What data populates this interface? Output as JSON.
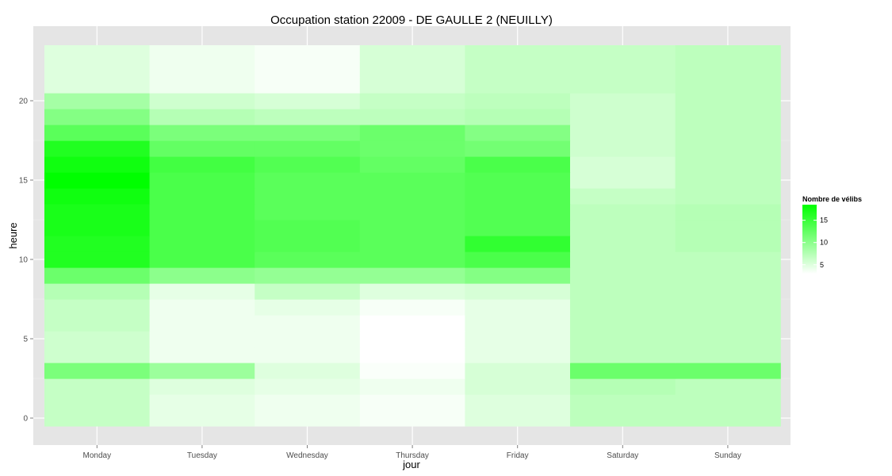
{
  "chart_data": {
    "type": "heatmap",
    "title": "Occupation station 22009 - DE GAULLE 2 (NEUILLY)",
    "xlabel": "jour",
    "ylabel": "heure",
    "categories": [
      "Monday",
      "Tuesday",
      "Wednesday",
      "Thursday",
      "Friday",
      "Saturday",
      "Sunday"
    ],
    "hours": [
      0,
      1,
      2,
      3,
      4,
      5,
      6,
      7,
      8,
      9,
      10,
      11,
      12,
      13,
      14,
      15,
      16,
      17,
      18,
      19,
      20,
      21,
      22,
      23
    ],
    "ylim": [
      -0.5,
      23.5
    ],
    "yticks": [
      0,
      5,
      10,
      15,
      20
    ],
    "grid": true,
    "legend": {
      "title": "Nombre de vélibs",
      "position": "right",
      "ticks": [
        5,
        10,
        15
      ],
      "range": [
        3,
        18.5
      ],
      "low_color": "#ffffff",
      "high_color": "#00ff00"
    },
    "values": [
      [
        6.5,
        4.5,
        4.0,
        3.5,
        5.0,
        7.0,
        7.0
      ],
      [
        6.5,
        4.5,
        4.0,
        3.5,
        5.0,
        7.0,
        7.0
      ],
      [
        6.5,
        5.0,
        4.5,
        4.0,
        5.5,
        7.5,
        7.0
      ],
      [
        11.0,
        9.0,
        5.0,
        3.3,
        5.5,
        12.0,
        12.0
      ],
      [
        6.0,
        4.0,
        4.0,
        3.0,
        4.5,
        7.0,
        7.0
      ],
      [
        6.0,
        4.0,
        4.0,
        3.0,
        4.5,
        7.0,
        7.0
      ],
      [
        6.5,
        4.0,
        4.0,
        3.0,
        4.5,
        7.0,
        7.0
      ],
      [
        6.5,
        4.0,
        4.5,
        3.5,
        4.5,
        7.0,
        7.0
      ],
      [
        7.5,
        4.5,
        6.5,
        5.0,
        5.5,
        7.0,
        7.0
      ],
      [
        12.0,
        10.0,
        9.5,
        9.5,
        10.5,
        7.0,
        7.0
      ],
      [
        16.5,
        14.0,
        13.0,
        13.0,
        14.0,
        7.0,
        7.0
      ],
      [
        16.5,
        14.0,
        13.5,
        13.0,
        15.5,
        7.0,
        7.5
      ],
      [
        17.0,
        14.0,
        13.5,
        13.0,
        13.5,
        7.0,
        7.5
      ],
      [
        17.0,
        14.0,
        13.0,
        13.0,
        13.5,
        7.0,
        7.5
      ],
      [
        17.5,
        14.0,
        13.0,
        13.0,
        13.5,
        6.5,
        7.0
      ],
      [
        18.5,
        14.0,
        13.0,
        13.0,
        13.5,
        5.5,
        7.0
      ],
      [
        17.5,
        14.5,
        13.5,
        12.5,
        14.0,
        5.5,
        7.0
      ],
      [
        16.5,
        12.5,
        12.5,
        12.0,
        11.5,
        6.0,
        7.0
      ],
      [
        13.0,
        11.0,
        11.0,
        12.0,
        10.5,
        6.0,
        7.0
      ],
      [
        10.5,
        7.5,
        7.0,
        7.0,
        7.5,
        6.0,
        7.0
      ],
      [
        8.5,
        6.0,
        5.5,
        6.5,
        7.0,
        6.0,
        7.0
      ],
      [
        5.0,
        4.0,
        3.5,
        5.5,
        6.5,
        6.5,
        7.0
      ],
      [
        5.0,
        4.0,
        3.5,
        5.5,
        6.5,
        6.5,
        7.0
      ],
      [
        5.0,
        4.0,
        3.5,
        5.5,
        6.5,
        6.5,
        7.0
      ]
    ]
  }
}
